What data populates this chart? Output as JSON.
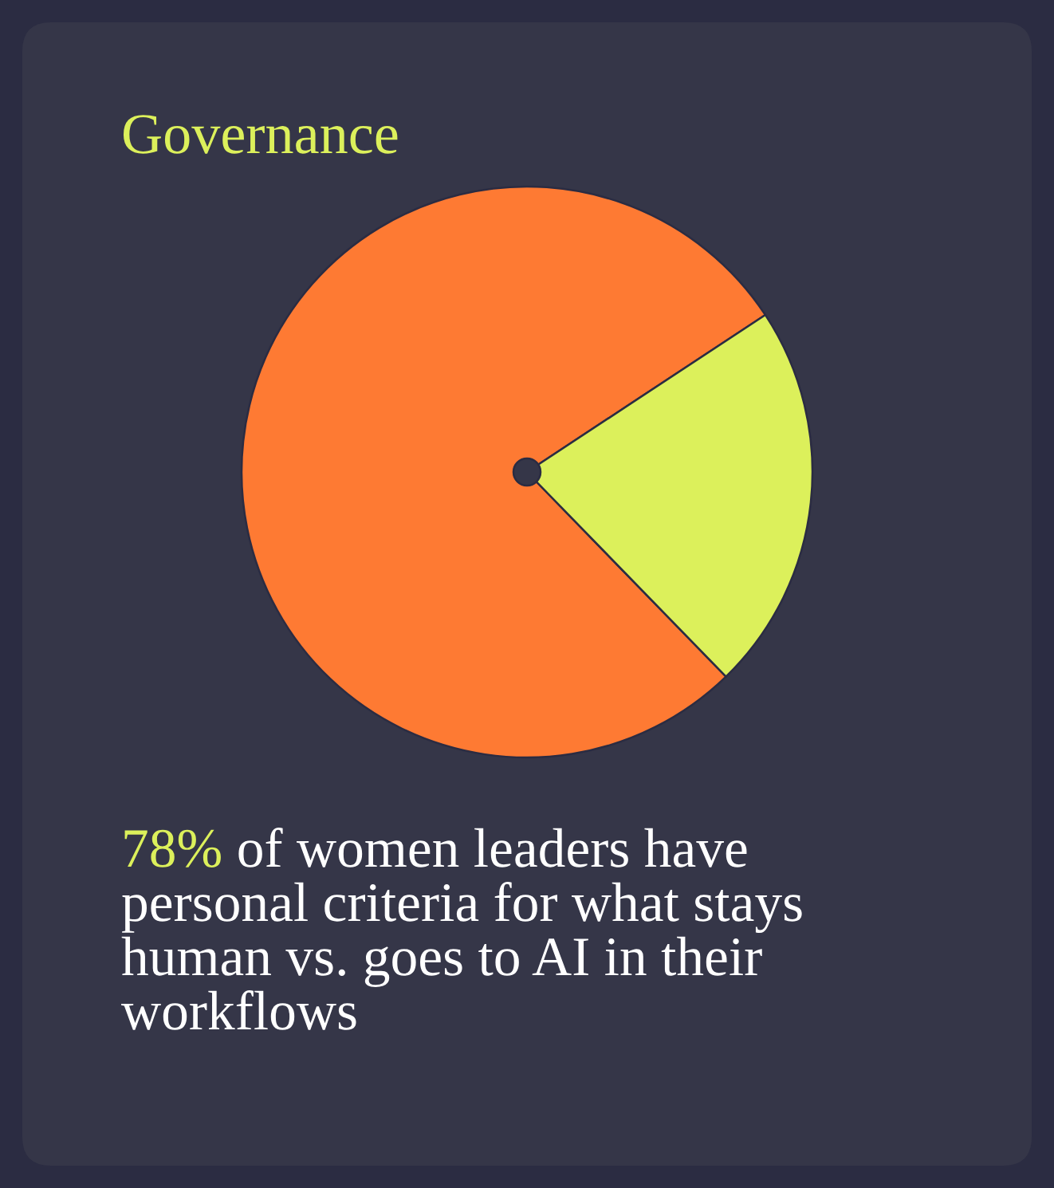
{
  "chart_data": {
    "type": "pie",
    "title": "Governance",
    "categories": [
      null,
      null
    ],
    "values": [
      78,
      22
    ],
    "colors": [
      "#fe7a33",
      "#dcf05b"
    ],
    "annotations": [
      "78% of women leaders have personal criteria for what stays human vs. goes to AI in their workflows"
    ]
  }
}
